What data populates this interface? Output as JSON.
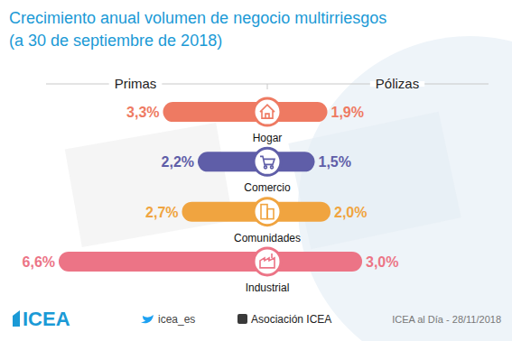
{
  "chart_data": {
    "type": "bar",
    "orientation": "horizontal",
    "title": "Crecimiento anual volumen de negocio multirriesgos",
    "subtitle": "(a 30 de septiembre de 2018)",
    "categories": [
      "Hogar",
      "Comercio",
      "Comunidades",
      "Industrial"
    ],
    "colors": [
      "#ee7a62",
      "#5f5ea8",
      "#f0a440",
      "#ec7486"
    ],
    "series": [
      {
        "name": "Primas",
        "values": [
          3.3,
          2.2,
          2.7,
          6.6
        ],
        "value_labels": [
          "3,3%",
          "2,2%",
          "2,7%",
          "6,6%"
        ]
      },
      {
        "name": "Pólizas",
        "values": [
          1.9,
          1.5,
          2.0,
          3.0
        ],
        "value_labels": [
          "1,9%",
          "1,5%",
          "2,0%",
          "3,0%"
        ]
      }
    ],
    "xlim": [
      0,
      7
    ],
    "tick_labels": false,
    "data_labels": true,
    "annotations": [
      "ICEA",
      "icea_es",
      "Asociación ICEA",
      "ICEA al Día - 28/11/2018"
    ]
  }
}
